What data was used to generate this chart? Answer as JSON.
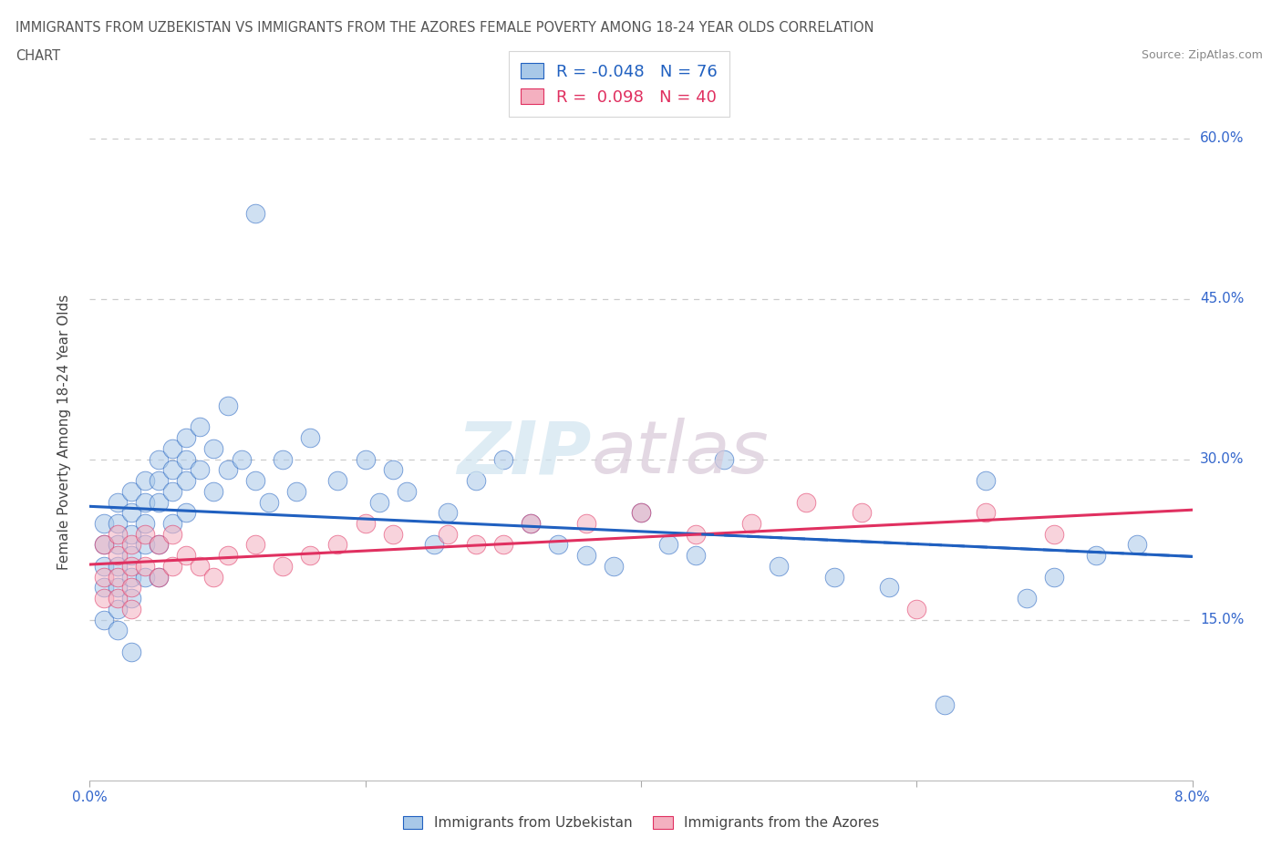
{
  "title_line1": "IMMIGRANTS FROM UZBEKISTAN VS IMMIGRANTS FROM THE AZORES FEMALE POVERTY AMONG 18-24 YEAR OLDS CORRELATION",
  "title_line2": "CHART",
  "source": "Source: ZipAtlas.com",
  "ylabel": "Female Poverty Among 18-24 Year Olds",
  "xlim": [
    0.0,
    0.08
  ],
  "ylim": [
    0.0,
    0.65
  ],
  "ytick_positions": [
    0.15,
    0.3,
    0.45,
    0.6
  ],
  "ytick_labels": [
    "15.0%",
    "30.0%",
    "45.0%",
    "60.0%"
  ],
  "color_uzbekistan": "#a8c8e8",
  "color_azores": "#f4b0c0",
  "line_color_uzbekistan": "#2060c0",
  "line_color_azores": "#e03060",
  "background_color": "#ffffff",
  "uz_R": -0.048,
  "uz_N": 76,
  "az_R": 0.098,
  "az_N": 40,
  "uzbekistan_x": [
    0.001,
    0.001,
    0.001,
    0.001,
    0.001,
    0.002,
    0.002,
    0.002,
    0.002,
    0.002,
    0.002,
    0.002,
    0.003,
    0.003,
    0.003,
    0.003,
    0.003,
    0.003,
    0.003,
    0.004,
    0.004,
    0.004,
    0.004,
    0.004,
    0.005,
    0.005,
    0.005,
    0.005,
    0.005,
    0.006,
    0.006,
    0.006,
    0.006,
    0.007,
    0.007,
    0.007,
    0.007,
    0.008,
    0.008,
    0.009,
    0.009,
    0.01,
    0.01,
    0.011,
    0.012,
    0.012,
    0.013,
    0.014,
    0.015,
    0.016,
    0.018,
    0.02,
    0.021,
    0.022,
    0.023,
    0.025,
    0.026,
    0.028,
    0.03,
    0.032,
    0.034,
    0.036,
    0.038,
    0.04,
    0.042,
    0.044,
    0.046,
    0.05,
    0.054,
    0.058,
    0.062,
    0.065,
    0.068,
    0.07,
    0.073,
    0.076
  ],
  "uzbekistan_y": [
    0.24,
    0.22,
    0.2,
    0.18,
    0.15,
    0.26,
    0.24,
    0.22,
    0.2,
    0.18,
    0.16,
    0.14,
    0.27,
    0.25,
    0.23,
    0.21,
    0.19,
    0.17,
    0.12,
    0.28,
    0.26,
    0.24,
    0.22,
    0.19,
    0.3,
    0.28,
    0.26,
    0.22,
    0.19,
    0.31,
    0.29,
    0.27,
    0.24,
    0.32,
    0.3,
    0.28,
    0.25,
    0.33,
    0.29,
    0.31,
    0.27,
    0.35,
    0.29,
    0.3,
    0.53,
    0.28,
    0.26,
    0.3,
    0.27,
    0.32,
    0.28,
    0.3,
    0.26,
    0.29,
    0.27,
    0.22,
    0.25,
    0.28,
    0.3,
    0.24,
    0.22,
    0.21,
    0.2,
    0.25,
    0.22,
    0.21,
    0.3,
    0.2,
    0.19,
    0.18,
    0.07,
    0.28,
    0.17,
    0.19,
    0.21,
    0.22
  ],
  "azores_x": [
    0.001,
    0.001,
    0.001,
    0.002,
    0.002,
    0.002,
    0.002,
    0.003,
    0.003,
    0.003,
    0.003,
    0.004,
    0.004,
    0.005,
    0.005,
    0.006,
    0.006,
    0.007,
    0.008,
    0.009,
    0.01,
    0.012,
    0.014,
    0.016,
    0.018,
    0.02,
    0.022,
    0.026,
    0.028,
    0.03,
    0.032,
    0.036,
    0.04,
    0.044,
    0.048,
    0.052,
    0.056,
    0.06,
    0.065,
    0.07
  ],
  "azores_y": [
    0.22,
    0.19,
    0.17,
    0.23,
    0.21,
    0.19,
    0.17,
    0.22,
    0.2,
    0.18,
    0.16,
    0.23,
    0.2,
    0.22,
    0.19,
    0.23,
    0.2,
    0.21,
    0.2,
    0.19,
    0.21,
    0.22,
    0.2,
    0.21,
    0.22,
    0.24,
    0.23,
    0.23,
    0.22,
    0.22,
    0.24,
    0.24,
    0.25,
    0.23,
    0.24,
    0.26,
    0.25,
    0.16,
    0.25,
    0.23
  ]
}
